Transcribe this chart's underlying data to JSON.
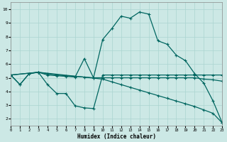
{
  "xlabel": "Humidex (Indice chaleur)",
  "bg_color": "#cce8e5",
  "grid_color": "#aad4d0",
  "line_color": "#006660",
  "xlim": [
    0,
    23
  ],
  "ylim": [
    1.5,
    10.5
  ],
  "xticks": [
    0,
    1,
    2,
    3,
    4,
    5,
    6,
    7,
    8,
    9,
    10,
    11,
    12,
    13,
    14,
    15,
    16,
    17,
    18,
    19,
    20,
    21,
    22,
    23
  ],
  "yticks": [
    2,
    3,
    4,
    5,
    6,
    7,
    8,
    9,
    10
  ],
  "curve_big_x": [
    0,
    1,
    2,
    3,
    4,
    5,
    6,
    7,
    8,
    9,
    10,
    11,
    12,
    13,
    14,
    15,
    16,
    17,
    18,
    19,
    20,
    21,
    22,
    23
  ],
  "curve_big_y": [
    5.2,
    4.5,
    5.3,
    5.4,
    5.2,
    5.15,
    5.1,
    5.05,
    6.4,
    5.0,
    7.8,
    8.6,
    9.5,
    9.35,
    9.8,
    9.65,
    7.7,
    7.45,
    6.65,
    6.25,
    5.3,
    4.6,
    3.3,
    1.7
  ],
  "curve_dip_x": [
    0,
    1,
    2,
    3,
    4,
    5,
    6,
    7,
    8,
    9,
    10,
    11,
    12,
    13,
    14,
    15,
    16,
    17,
    18,
    19,
    20,
    21,
    22,
    23
  ],
  "curve_dip_y": [
    5.2,
    4.5,
    5.3,
    5.4,
    4.5,
    3.85,
    3.85,
    2.95,
    2.8,
    2.75,
    5.2,
    5.2,
    5.2,
    5.2,
    5.2,
    5.2,
    5.2,
    5.2,
    5.2,
    5.2,
    5.2,
    5.2,
    5.2,
    5.2
  ],
  "curve_flat_x": [
    0,
    3,
    4,
    5,
    6,
    7,
    8,
    9,
    10,
    11,
    12,
    13,
    14,
    15,
    16,
    17,
    18,
    19,
    20,
    21,
    22,
    23
  ],
  "curve_flat_y": [
    5.2,
    5.4,
    5.3,
    5.2,
    5.15,
    5.1,
    5.05,
    5.0,
    5.0,
    5.0,
    5.0,
    5.0,
    5.0,
    5.0,
    5.0,
    5.0,
    5.0,
    5.0,
    5.0,
    4.9,
    4.85,
    4.75
  ],
  "curve_diag_x": [
    0,
    3,
    10,
    11,
    12,
    13,
    14,
    15,
    16,
    17,
    18,
    19,
    20,
    21,
    22,
    23
  ],
  "curve_diag_y": [
    5.2,
    5.4,
    4.9,
    4.7,
    4.5,
    4.3,
    4.1,
    3.9,
    3.7,
    3.5,
    3.3,
    3.1,
    2.9,
    2.65,
    2.4,
    1.7
  ]
}
